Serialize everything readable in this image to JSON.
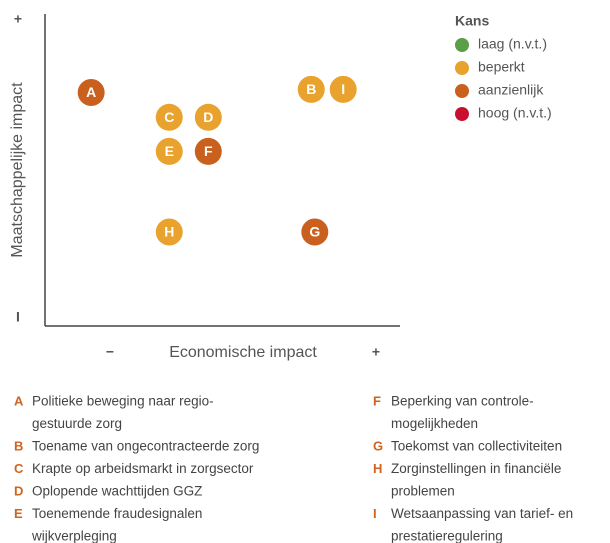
{
  "chart_data": {
    "type": "scatter",
    "x_label": "Economische impact",
    "y_label": "Maatschappelijke impact",
    "x_end_labels": [
      "−",
      "+"
    ],
    "y_end_labels": [
      "I",
      "+"
    ],
    "legend_title": "Kans",
    "xlim": [
      0,
      100
    ],
    "ylim": [
      0,
      100
    ],
    "series": [
      {
        "name": "laag (n.v.t.)",
        "color": "#5a9e48",
        "labels": [],
        "x": [],
        "y": []
      },
      {
        "name": "beperkt",
        "color": "#e9a22e",
        "labels": [
          "B",
          "I",
          "C",
          "D",
          "E",
          "H"
        ],
        "x": [
          75,
          84,
          35,
          46,
          35,
          35
        ],
        "y": [
          76,
          76,
          67,
          67,
          56,
          30
        ]
      },
      {
        "name": "aanzienlijk",
        "color": "#c9601e",
        "labels": [
          "A",
          "F",
          "G"
        ],
        "x": [
          13,
          46,
          76
        ],
        "y": [
          75,
          56,
          30
        ]
      },
      {
        "name": "hoog (n.v.t.)",
        "color": "#c8102e",
        "labels": [],
        "x": [],
        "y": []
      }
    ]
  },
  "descriptions": [
    [
      {
        "letter": "A",
        "lines": [
          "Politieke beweging naar regio-",
          "gestuurde zorg"
        ]
      },
      {
        "letter": "B",
        "lines": [
          "Toename van ongecontracteerde zorg"
        ]
      },
      {
        "letter": "C",
        "lines": [
          "Krapte op arbeidsmarkt in zorgsector"
        ]
      },
      {
        "letter": "D",
        "lines": [
          "Oplopende wachttijden GGZ"
        ]
      },
      {
        "letter": "E",
        "lines": [
          "Toenemende fraudesignalen",
          "wijkverpleging"
        ]
      }
    ],
    [
      {
        "letter": "F",
        "lines": [
          "Beperking van controle-",
          "mogelijkheden"
        ]
      },
      {
        "letter": "G",
        "lines": [
          "Toekomst van collectiviteiten"
        ]
      },
      {
        "letter": "H",
        "lines": [
          "Zorginstellingen in financiële",
          "problemen"
        ]
      },
      {
        "letter": "I",
        "lines": [
          "Wetsaanpassing van tarief- en",
          "prestatieregulering"
        ]
      }
    ]
  ]
}
